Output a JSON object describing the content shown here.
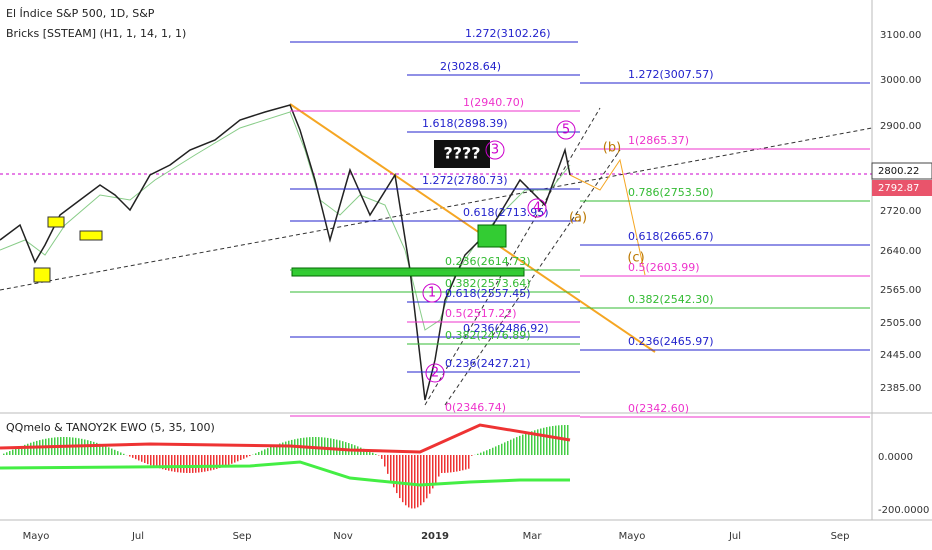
{
  "header": {
    "title": "El Índice S&P 500, 1D, S&P",
    "indicator": "Bricks [SSTEAM] (H1, 1, 14, 1, 1)"
  },
  "price_axis": [
    "3100.00",
    "3000.00",
    "2900.00",
    "2720.00",
    "2640.00",
    "2565.00",
    "2505.00",
    "2445.00",
    "2385.00"
  ],
  "current_price": "2800.22",
  "last_price": "2792.87",
  "oscillator": {
    "title": "QQmelo & TANOY2K EWO (5, 35, 100)",
    "labels": [
      "0.0000",
      "-200.0000"
    ]
  },
  "time_axis": [
    "Mayo",
    "Jul",
    "Sep",
    "Nov",
    "2019",
    "Mar",
    "Mayo",
    "Jul",
    "Sep"
  ],
  "fib_labels": [
    "1.272(3102.26)",
    "2(3028.64)",
    "1.272(3007.57)",
    "1(2940.70)",
    "1.618(2898.39)",
    "1(2865.37)",
    "1.272(2780.73)",
    "0.786(2753.50)",
    "0.618(2713.95)",
    "0.618(2665.67)",
    "0.236(2614.73)",
    "0.5(2603.99)",
    "0.382(2573.64)",
    "0.618(2557.45)",
    "0.382(2542.30)",
    "0.5(2517.22)",
    "0.236(2486.92)",
    "0.382(2476.89)",
    "0.236(2465.97)",
    "0.236(2427.21)",
    "0(2346.74)",
    "0(2342.60)"
  ],
  "annotations": {
    "box": "????",
    "waves": [
      "1",
      "2",
      "3",
      "4",
      "5",
      "(a)",
      "(b)",
      "(c)"
    ]
  }
}
